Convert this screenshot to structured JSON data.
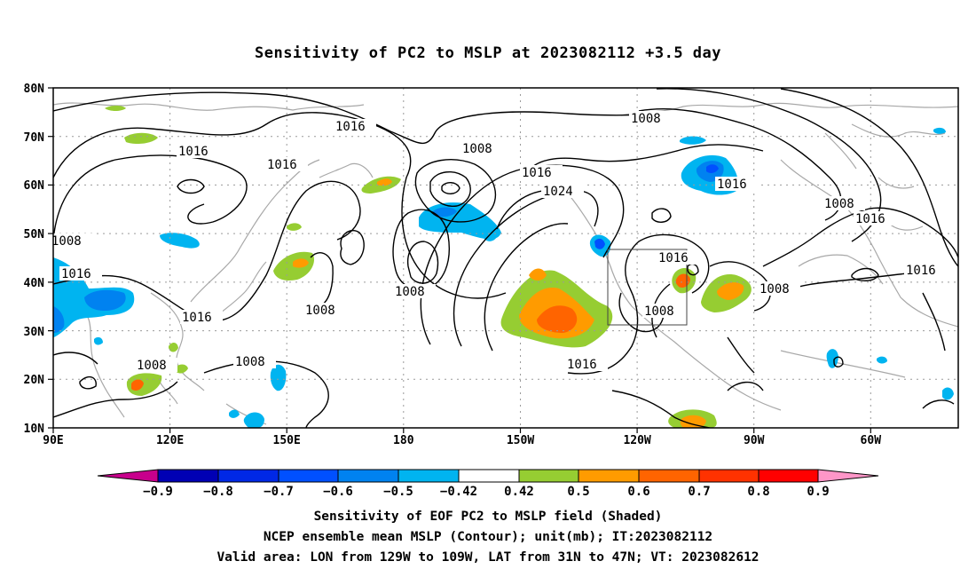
{
  "title": "Sensitivity of PC2 to MSLP at 2023082112 +3.5 day",
  "map": {
    "lat_labels": [
      "80N",
      "70N",
      "60N",
      "50N",
      "40N",
      "30N",
      "20N",
      "10N"
    ],
    "lon_labels": [
      "90E",
      "120E",
      "150E",
      "180",
      "150W",
      "120W",
      "90W",
      "60W"
    ],
    "valid_box": {
      "lon_from": "129W",
      "lon_to": "109W",
      "lat_from": "31N",
      "lat_to": "47N"
    },
    "contour_labels": [
      "1016",
      "1016",
      "1016",
      "1008",
      "1016",
      "1024",
      "1008",
      "1008",
      "1016",
      "1016",
      "1008",
      "1008",
      "1008",
      "1008",
      "1008",
      "1008",
      "1016",
      "1016",
      "1008",
      "1016",
      "1008"
    ]
  },
  "colorbar": {
    "ticks": [
      "−0.9",
      "−0.8",
      "−0.7",
      "−0.6",
      "−0.5",
      "−0.42",
      "0.42",
      "0.5",
      "0.6",
      "0.7",
      "0.8",
      "0.9"
    ],
    "colors": [
      "#c8008c",
      "#0000b4",
      "#0028e6",
      "#0050ff",
      "#0082f0",
      "#00b4f0",
      "#ffffff",
      "#96cd32",
      "#ff9b00",
      "#ff6400",
      "#ff3200",
      "#ff0000",
      "#ff96c8"
    ]
  },
  "caption": {
    "line1": "Sensitivity of EOF PC2 to MSLP field (Shaded)",
    "line2": "NCEP ensemble mean MSLP (Contour); unit(mb); IT:2023082112",
    "line3": "Valid area: LON from 129W to 109W, LAT from 31N to 47N; VT: 2023082612"
  }
}
